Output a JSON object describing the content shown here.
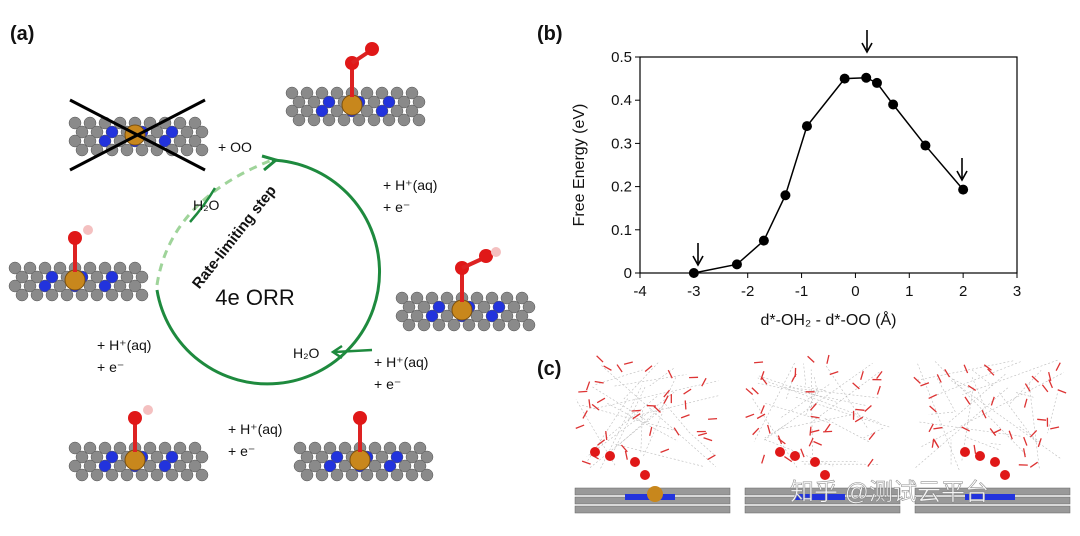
{
  "panel_a": {
    "label": "(a)",
    "center": "4e ORR",
    "rate_step": "Rate-limiting step",
    "texts": [
      "+ OO",
      "+ H⁺(aq)",
      "+ e⁻",
      "H₂O",
      "+ H⁺(aq)",
      "+ e⁻",
      "H₂O",
      "+ H⁺(aq)",
      "+ e⁻",
      "+ H⁺(aq)",
      "+ e⁻"
    ]
  },
  "chart_data": {
    "type": "line",
    "label": "(b)",
    "x_label": "d*-OH₂ - d*-OO (Å)",
    "y_label": "Free Energy (eV)",
    "x": [
      -3,
      -2.2,
      -1.7,
      -1.3,
      -0.9,
      -0.2,
      0.2,
      0.4,
      0.7,
      1.3,
      2.0
    ],
    "values": [
      0,
      0.02,
      0.075,
      0.18,
      0.34,
      0.45,
      0.452,
      0.44,
      0.39,
      0.295,
      0.193
    ],
    "color": "#000000",
    "xlim": [
      -4,
      3
    ],
    "xticks": [
      -4,
      -3,
      -2,
      -1,
      0,
      1,
      2,
      3
    ],
    "ylim": [
      0,
      0.5
    ],
    "yticks": [
      0,
      0.1,
      0.2,
      0.3,
      0.4,
      0.5
    ],
    "grid": false
  },
  "panel_c": {
    "label": "(c)",
    "watermark": "知乎 @测试云平台"
  }
}
